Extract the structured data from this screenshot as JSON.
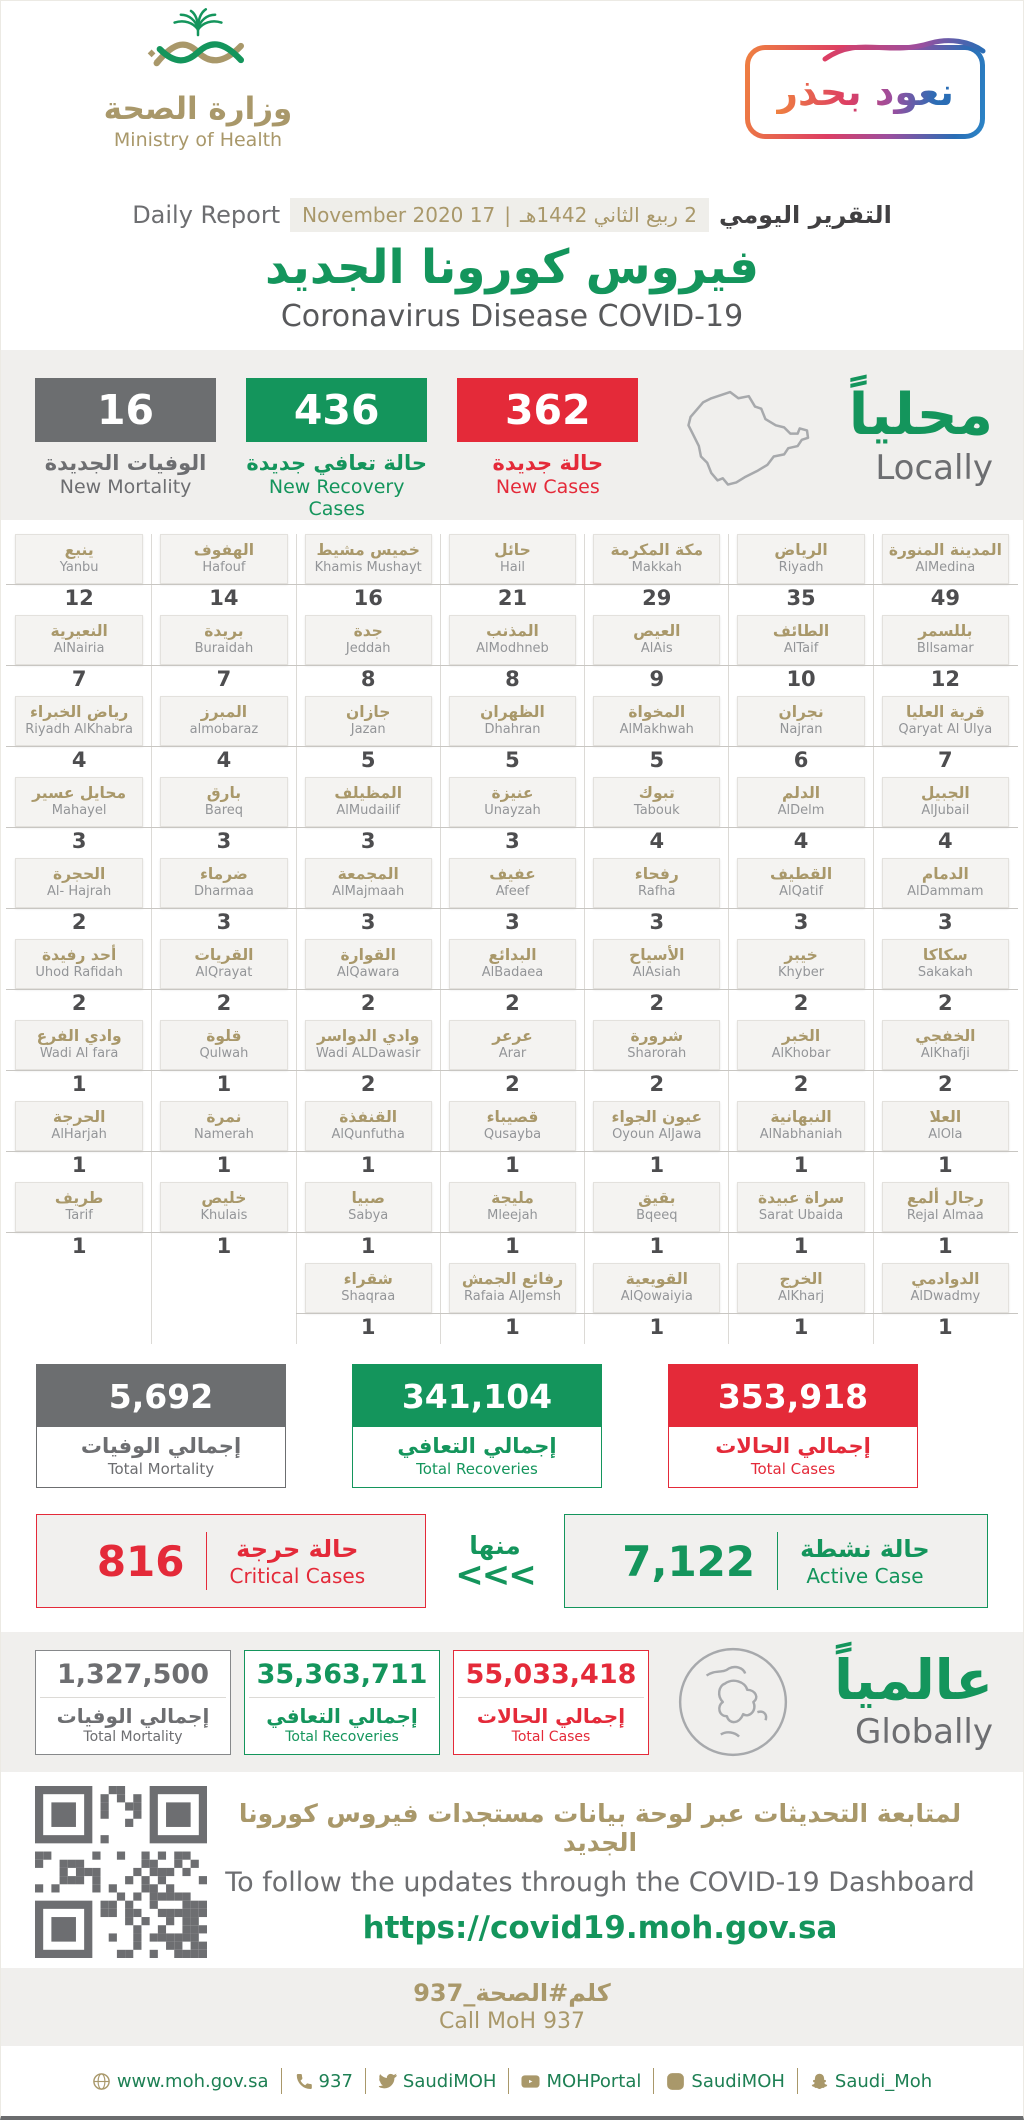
{
  "colors": {
    "green": "#14955C",
    "red": "#E42A39",
    "gray": "#6C6E70",
    "gold": "#A9986A"
  },
  "header": {
    "logo": {
      "arabic": "وزارة الصحة",
      "english": "Ministry of Health"
    },
    "badge": {
      "arabic": "نعود بحذر"
    }
  },
  "report": {
    "title_ar": "التقرير اليومي",
    "date_hijri": "2 ربيع الثاني 1442هـ",
    "date_sep": "|",
    "date_greg": "17 November 2020",
    "title_en": "Daily Report",
    "main_title_ar": "فيروس كورونا الجديد",
    "main_title_en": "Coronavirus Disease COVID-19"
  },
  "local": {
    "heading_ar": "محلياً",
    "heading_en": "Locally",
    "stats": [
      {
        "value": "16",
        "label_ar": "الوفيات الجديدة",
        "label_en": "New Mortality"
      },
      {
        "value": "436",
        "label_ar": "حالة تعافي جديدة",
        "label_en": "New Recovery Cases"
      },
      {
        "value": "362",
        "label_ar": "حالة جديدة",
        "label_en": "New Cases"
      }
    ]
  },
  "cities": {
    "columns": [
      [
        {
          "ar": "ينبع",
          "en": "Yanbu",
          "value": "12"
        },
        {
          "ar": "النعيرية",
          "en": "AlNairia",
          "value": "7"
        },
        {
          "ar": "رياض الخبراء",
          "en": "Riyadh AlKhabra",
          "value": "4"
        },
        {
          "ar": "محايل عسير",
          "en": "Mahayel",
          "value": "3"
        },
        {
          "ar": "الحجرة",
          "en": "Al- Hajrah",
          "value": "2"
        },
        {
          "ar": "أحد رفيدة",
          "en": "Uhod Rafidah",
          "value": "2"
        },
        {
          "ar": "وادي الفرع",
          "en": "Wadi Al fara",
          "value": "1"
        },
        {
          "ar": "الحرجة",
          "en": "AlHarjah",
          "value": "1"
        },
        {
          "ar": "طريف",
          "en": "Tarif",
          "value": "1"
        }
      ],
      [
        {
          "ar": "الهفوف",
          "en": "Hafouf",
          "value": "14"
        },
        {
          "ar": "بريدة",
          "en": "Buraidah",
          "value": "7"
        },
        {
          "ar": "المبرز",
          "en": "almobaraz",
          "value": "4"
        },
        {
          "ar": "بارق",
          "en": "Bareq",
          "value": "3"
        },
        {
          "ar": "ضرماء",
          "en": "Dharmaa",
          "value": "3"
        },
        {
          "ar": "القريات",
          "en": "AlQrayat",
          "value": "2"
        },
        {
          "ar": "قلوة",
          "en": "Qulwah",
          "value": "1"
        },
        {
          "ar": "نمرة",
          "en": "Namerah",
          "value": "1"
        },
        {
          "ar": "خليص",
          "en": "Khulais",
          "value": "1"
        }
      ],
      [
        {
          "ar": "خميس مشيط",
          "en": "Khamis Mushayt",
          "value": "16"
        },
        {
          "ar": "جدة",
          "en": "Jeddah",
          "value": "8"
        },
        {
          "ar": "جازان",
          "en": "Jazan",
          "value": "5"
        },
        {
          "ar": "المظيلف",
          "en": "AlMudailif",
          "value": "3"
        },
        {
          "ar": "المجمعة",
          "en": "AlMajmaah",
          "value": "3"
        },
        {
          "ar": "القوارة",
          "en": "AlQawara",
          "value": "2"
        },
        {
          "ar": "وادي الدواسر",
          "en": "Wadi ALDawasir",
          "value": "2"
        },
        {
          "ar": "القنفذة",
          "en": "AlQunfutha",
          "value": "1"
        },
        {
          "ar": "صبيا",
          "en": "Sabya",
          "value": "1"
        },
        {
          "ar": "شقراء",
          "en": "Shaqraa",
          "value": "1"
        }
      ],
      [
        {
          "ar": "حائل",
          "en": "Hail",
          "value": "21"
        },
        {
          "ar": "المذنب",
          "en": "AlModhneb",
          "value": "8"
        },
        {
          "ar": "الظهران",
          "en": "Dhahran",
          "value": "5"
        },
        {
          "ar": "عنيزة",
          "en": "Unayzah",
          "value": "3"
        },
        {
          "ar": "عفيف",
          "en": "Afeef",
          "value": "3"
        },
        {
          "ar": "البدائع",
          "en": "AlBadaea",
          "value": "2"
        },
        {
          "ar": "عرعر",
          "en": "Arar",
          "value": "2"
        },
        {
          "ar": "قصيباء",
          "en": "Qusayba",
          "value": "1"
        },
        {
          "ar": "مليجة",
          "en": "Mleejah",
          "value": "1"
        },
        {
          "ar": "رفائع الجمش",
          "en": "Rafaia AlJemsh",
          "value": "1"
        }
      ],
      [
        {
          "ar": "مكة المكرمة",
          "en": "Makkah",
          "value": "29"
        },
        {
          "ar": "العيص",
          "en": "AlAis",
          "value": "9"
        },
        {
          "ar": "المخواة",
          "en": "AlMakhwah",
          "value": "5"
        },
        {
          "ar": "تبوك",
          "en": "Tabouk",
          "value": "4"
        },
        {
          "ar": "رفحاء",
          "en": "Rafha",
          "value": "3"
        },
        {
          "ar": "الأسياح",
          "en": "AlAsiah",
          "value": "2"
        },
        {
          "ar": "شرورة",
          "en": "Sharorah",
          "value": "2"
        },
        {
          "ar": "عيون الجواء",
          "en": "Oyoun AlJawa",
          "value": "1"
        },
        {
          "ar": "بقيق",
          "en": "Bqeeq",
          "value": "1"
        },
        {
          "ar": "القويعية",
          "en": "AlQowaiyia",
          "value": "1"
        }
      ],
      [
        {
          "ar": "الرياض",
          "en": "Riyadh",
          "value": "35"
        },
        {
          "ar": "الطائف",
          "en": "AlTaif",
          "value": "10"
        },
        {
          "ar": "نجران",
          "en": "Najran",
          "value": "6"
        },
        {
          "ar": "الدلم",
          "en": "AlDelm",
          "value": "4"
        },
        {
          "ar": "القطيف",
          "en": "AlQatif",
          "value": "3"
        },
        {
          "ar": "خيبر",
          "en": "Khyber",
          "value": "2"
        },
        {
          "ar": "الخبر",
          "en": "AlKhobar",
          "value": "2"
        },
        {
          "ar": "النبهانية",
          "en": "AlNabhaniah",
          "value": "1"
        },
        {
          "ar": "سراة عبيدة",
          "en": "Sarat Ubaida",
          "value": "1"
        },
        {
          "ar": "الخرج",
          "en": "AlKharj",
          "value": "1"
        }
      ],
      [
        {
          "ar": "المدينة المنورة",
          "en": "AlMedina",
          "value": "49"
        },
        {
          "ar": "بللسمر",
          "en": "Bllsamar",
          "value": "12"
        },
        {
          "ar": "قرية العليا",
          "en": "Qaryat Al Ulya",
          "value": "7"
        },
        {
          "ar": "الجبيل",
          "en": "AlJubail",
          "value": "4"
        },
        {
          "ar": "الدمام",
          "en": "AlDammam",
          "value": "3"
        },
        {
          "ar": "سكاكا",
          "en": "Sakakah",
          "value": "2"
        },
        {
          "ar": "الخفجي",
          "en": "AlKhafji",
          "value": "2"
        },
        {
          "ar": "العلا",
          "en": "AlOla",
          "value": "1"
        },
        {
          "ar": "رجال ألمع",
          "en": "Rejal Almaa",
          "value": "1"
        },
        {
          "ar": "الدوادمي",
          "en": "AlDwadmy",
          "value": "1"
        }
      ]
    ]
  },
  "totals": [
    {
      "value": "5,692",
      "label_ar": "إجمالي الوفيات",
      "label_en": "Total Mortality"
    },
    {
      "value": "341,104",
      "label_ar": "إجمالي التعافي",
      "label_en": "Total Recoveries"
    },
    {
      "value": "353,918",
      "label_ar": "إجمالي الحالات",
      "label_en": "Total Cases"
    }
  ],
  "status": {
    "critical": {
      "value": "816",
      "label_ar": "حالة حرجة",
      "label_en": "Critical Cases"
    },
    "of_which": "منها",
    "arrows": "<<<",
    "active": {
      "value": "7,122",
      "label_ar": "حالة نشطة",
      "label_en": "Active Case"
    }
  },
  "global": {
    "heading_ar": "عالمياً",
    "heading_en": "Globally",
    "stats": [
      {
        "value": "1,327,500",
        "label_ar": "إجمالي الوفيات",
        "label_en": "Total Mortality"
      },
      {
        "value": "35,363,711",
        "label_ar": "إجمالي التعافي",
        "label_en": "Total Recoveries"
      },
      {
        "value": "55,033,418",
        "label_ar": "إجمالي الحالات",
        "label_en": "Total Cases"
      }
    ]
  },
  "dashboard": {
    "text_ar": "لمتابعة التحديثات عبر لوحة بيانات مستجدات فيروس كورونا الجديد",
    "text_en": "To follow the updates through the COVID-19 Dashboard",
    "url": "https://covid19.moh.gov.sa"
  },
  "call": {
    "ar": "كلم#الصحة_937",
    "en": "Call MoH 937"
  },
  "footer": {
    "items": [
      {
        "icon": "globe-icon",
        "label": "www.moh.gov.sa"
      },
      {
        "icon": "phone-icon",
        "label": "937"
      },
      {
        "icon": "twitter-icon",
        "label": "SaudiMOH"
      },
      {
        "icon": "youtube-icon",
        "label": "MOHPortal"
      },
      {
        "icon": "instagram-icon",
        "label": "SaudiMOH"
      },
      {
        "icon": "snapchat-icon",
        "label": "Saudi_Moh"
      }
    ]
  }
}
